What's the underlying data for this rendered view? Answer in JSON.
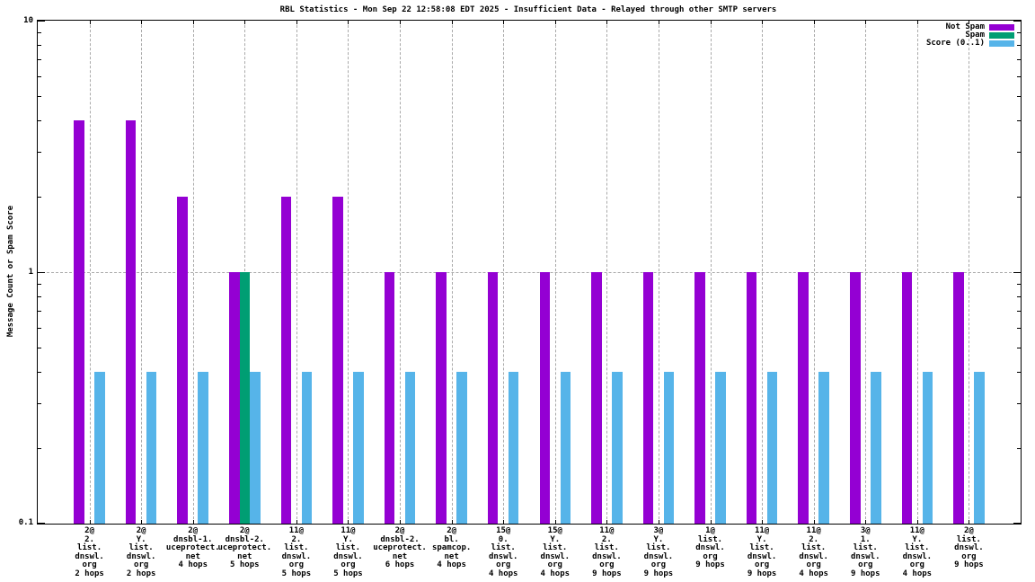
{
  "title": "RBL Statistics - Mon Sep 22 12:58:08 EDT 2025 - Insufficient Data - Relayed through other SMTP servers",
  "ylabel": "Message Count or Spam Score",
  "colors": {
    "not_spam": "#9400d3",
    "spam": "#009e73",
    "score": "#56b4e9",
    "grid": "#aaaaaa",
    "axis": "#000000",
    "background": "#ffffff"
  },
  "legend": {
    "position": "top-right",
    "items": [
      {
        "label": "Not Spam",
        "color_key": "not_spam"
      },
      {
        "label": "Spam",
        "color_key": "spam"
      },
      {
        "label": "Score (0..1)",
        "color_key": "score"
      }
    ]
  },
  "chart_data": {
    "type": "bar",
    "y_scale": "log",
    "ylim": [
      0.1,
      10
    ],
    "grid": "x-ticks dotted vertical, dotted horizontal at y=1",
    "ytick_labels": [
      {
        "value": 10,
        "label": "10"
      },
      {
        "value": 1,
        "label": "1"
      },
      {
        "value": 0.1,
        "label": "0.1"
      }
    ],
    "categories": [
      [
        "2@",
        "2.",
        "list.",
        "dnswl.",
        "org",
        "2 hops"
      ],
      [
        "2@",
        "Y.",
        "list.",
        "dnswl.",
        "org",
        "2 hops"
      ],
      [
        "2@",
        "dnsbl-1.",
        "uceprotect.",
        "net",
        "4 hops"
      ],
      [
        "2@",
        "dnsbl-2.",
        "uceprotect.",
        "net",
        "5 hops"
      ],
      [
        "11@",
        "2.",
        "list.",
        "dnswl.",
        "org",
        "5 hops"
      ],
      [
        "11@",
        "Y.",
        "list.",
        "dnswl.",
        "org",
        "5 hops"
      ],
      [
        "2@",
        "dnsbl-2.",
        "uceprotect.",
        "net",
        "6 hops"
      ],
      [
        "2@",
        "bl.",
        "spamcop.",
        "net",
        "4 hops"
      ],
      [
        "15@",
        "0.",
        "list.",
        "dnswl.",
        "org",
        "4 hops"
      ],
      [
        "15@",
        "Y.",
        "list.",
        "dnswl.",
        "org",
        "4 hops"
      ],
      [
        "11@",
        "2.",
        "list.",
        "dnswl.",
        "org",
        "9 hops"
      ],
      [
        "3@",
        "Y.",
        "list.",
        "dnswl.",
        "org",
        "9 hops"
      ],
      [
        "1@",
        "list.",
        "dnswl.",
        "org",
        "9 hops"
      ],
      [
        "11@",
        "Y.",
        "list.",
        "dnswl.",
        "org",
        "9 hops"
      ],
      [
        "11@",
        "2.",
        "list.",
        "dnswl.",
        "org",
        "4 hops"
      ],
      [
        "3@",
        "1.",
        "list.",
        "dnswl.",
        "org",
        "9 hops"
      ],
      [
        "11@",
        "Y.",
        "list.",
        "dnswl.",
        "org",
        "4 hops"
      ],
      [
        "2@",
        "list.",
        "dnswl.",
        "org",
        "9 hops"
      ]
    ],
    "series": [
      {
        "name": "Not Spam",
        "color_key": "not_spam",
        "values": [
          4,
          4,
          2,
          1,
          2,
          2,
          1,
          1,
          1,
          1,
          1,
          1,
          1,
          1,
          1,
          1,
          1,
          1
        ]
      },
      {
        "name": "Spam",
        "color_key": "spam",
        "values": [
          null,
          null,
          null,
          1,
          null,
          null,
          null,
          null,
          null,
          null,
          null,
          null,
          null,
          null,
          null,
          null,
          null,
          null
        ]
      },
      {
        "name": "Score (0..1)",
        "color_key": "score",
        "values": [
          0.4,
          0.4,
          0.4,
          0.4,
          0.4,
          0.4,
          0.4,
          0.4,
          0.4,
          0.4,
          0.4,
          0.4,
          0.4,
          0.4,
          0.4,
          0.4,
          0.4,
          0.4
        ]
      }
    ]
  }
}
